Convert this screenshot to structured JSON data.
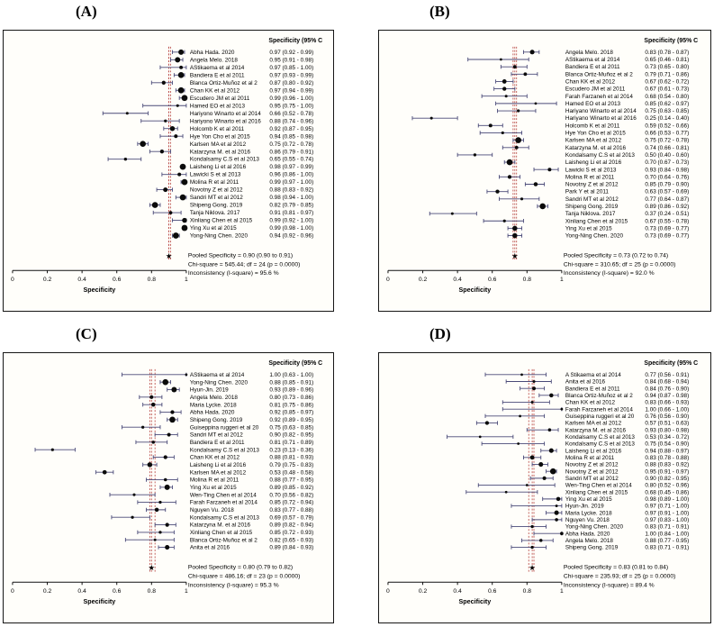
{
  "colors": {
    "ci_line": "#4a4a78",
    "point": "#0b0b0b",
    "pooled_line": "#b5413c",
    "axis": "#111111",
    "text": "#000000"
  },
  "chart_data": [
    {
      "type": "scatter",
      "subtype": "forest-plot",
      "panel": "(A)",
      "header": "Specificity (95% C",
      "xlabel": "Specificity",
      "xlim": [
        0,
        1
      ],
      "xticks": [
        0,
        0.2,
        0.4,
        0.6,
        0.8,
        1
      ],
      "xtick_labels": [
        "0",
        "0.2",
        "0.4",
        "0.6",
        "0.8",
        "1"
      ],
      "pooled": {
        "est": 0.9,
        "lo": 0.9,
        "hi": 0.91
      },
      "studies": [
        {
          "name": "Abha Hada. 2020",
          "est": 0.97,
          "lo": 0.92,
          "hi": 0.99
        },
        {
          "name": "Angela Melo. 2018",
          "est": 0.95,
          "lo": 0.91,
          "hi": 0.98
        },
        {
          "name": "AStikaema et al 2014",
          "est": 0.97,
          "lo": 0.85,
          "hi": 1.0
        },
        {
          "name": "Bandiera E et al 2011",
          "est": 0.97,
          "lo": 0.93,
          "hi": 0.99
        },
        {
          "name": "Blanca Ortiz-Muñoz et al 2",
          "est": 0.87,
          "lo": 0.8,
          "hi": 0.92
        },
        {
          "name": "Chan KK et al 2012",
          "est": 0.97,
          "lo": 0.94,
          "hi": 0.99
        },
        {
          "name": "Escudero JM et al 2011",
          "est": 0.99,
          "lo": 0.96,
          "hi": 1.0
        },
        {
          "name": "Hamed EO et al 2013",
          "est": 0.95,
          "lo": 0.75,
          "hi": 1.0
        },
        {
          "name": "Hariyono Winarto et al 2014",
          "est": 0.66,
          "lo": 0.52,
          "hi": 0.78
        },
        {
          "name": "Hariyono Winarto et al 2016",
          "est": 0.88,
          "lo": 0.74,
          "hi": 0.96
        },
        {
          "name": "Holcomb K et al 2011",
          "est": 0.92,
          "lo": 0.87,
          "hi": 0.95
        },
        {
          "name": "Hye Yon Cho et al 2015",
          "est": 0.94,
          "lo": 0.85,
          "hi": 0.98
        },
        {
          "name": "Karlsen MA et al 2012",
          "est": 0.75,
          "lo": 0.72,
          "hi": 0.78
        },
        {
          "name": "Katarzyna M.  et al 2016",
          "est": 0.86,
          "lo": 0.79,
          "hi": 0.91
        },
        {
          "name": "Kondalsamy C.S et al 2013",
          "est": 0.65,
          "lo": 0.55,
          "hi": 0.74
        },
        {
          "name": "Laisheng Li et al 2016",
          "est": 0.98,
          "lo": 0.97,
          "hi": 0.99
        },
        {
          "name": "Lawicki S et al 2013",
          "est": 0.96,
          "lo": 0.86,
          "hi": 1.0
        },
        {
          "name": "Molina R et al 2011",
          "est": 0.99,
          "lo": 0.97,
          "hi": 1.0
        },
        {
          "name": "Novotny Z et al 2012",
          "est": 0.88,
          "lo": 0.83,
          "hi": 0.92
        },
        {
          "name": "Sandri MT et al 2012",
          "est": 0.98,
          "lo": 0.94,
          "hi": 1.0
        },
        {
          "name": "Shipeng Gong. 2019",
          "est": 0.82,
          "lo": 0.79,
          "hi": 0.85
        },
        {
          "name": "Tanja Niklova. 2017",
          "est": 0.91,
          "lo": 0.81,
          "hi": 0.97
        },
        {
          "name": "Xinliang Chen et al 2015",
          "est": 0.99,
          "lo": 0.92,
          "hi": 1.0
        },
        {
          "name": "Ying Xu et al 2015",
          "est": 0.99,
          "lo": 0.98,
          "hi": 1.0
        },
        {
          "name": "Yong-Ning Chen. 2020",
          "est": 0.94,
          "lo": 0.92,
          "hi": 0.96
        }
      ],
      "summary": [
        "Pooled Specificity = 0.90 (0.90 to 0.91)",
        "Chi-square = 545.44; df = 24 (p = 0.0000)",
        "Inconsistency (I-square) = 95.6 %"
      ]
    },
    {
      "type": "scatter",
      "subtype": "forest-plot",
      "panel": "(B)",
      "header": "Specificity (95% C",
      "xlabel": "Specificity",
      "xlim": [
        0,
        1
      ],
      "xticks": [
        0,
        0.2,
        0.4,
        0.6,
        0.8,
        1
      ],
      "xtick_labels": [
        "0",
        "0.2",
        "0.4",
        "0.6",
        "0.8",
        "1"
      ],
      "pooled": {
        "est": 0.73,
        "lo": 0.72,
        "hi": 0.74
      },
      "studies": [
        {
          "name": "Angela Melo. 2018",
          "est": 0.83,
          "lo": 0.78,
          "hi": 0.87
        },
        {
          "name": "AStikaema et al 2014",
          "est": 0.65,
          "lo": 0.46,
          "hi": 0.81
        },
        {
          "name": "Bandiera E et al 2011",
          "est": 0.73,
          "lo": 0.65,
          "hi": 0.8
        },
        {
          "name": "Blanca Ortiz-Muñoz et al 2",
          "est": 0.79,
          "lo": 0.71,
          "hi": 0.86
        },
        {
          "name": "Chan KK et al 2012",
          "est": 0.67,
          "lo": 0.62,
          "hi": 0.72
        },
        {
          "name": "Escudero JM et al 2011",
          "est": 0.67,
          "lo": 0.61,
          "hi": 0.73
        },
        {
          "name": "Farah Farzaneh et al 2014",
          "est": 0.68,
          "lo": 0.54,
          "hi": 0.8
        },
        {
          "name": "Hamed EO et al 2013",
          "est": 0.85,
          "lo": 0.62,
          "hi": 0.97
        },
        {
          "name": "Hariyano Winarto et al 2014",
          "est": 0.75,
          "lo": 0.63,
          "hi": 0.85
        },
        {
          "name": "Hariyano Winarto et al 2016",
          "est": 0.25,
          "lo": 0.14,
          "hi": 0.4
        },
        {
          "name": "Holcomb K et al 2011",
          "est": 0.59,
          "lo": 0.52,
          "hi": 0.66
        },
        {
          "name": "Hye Yon Cho et al 2015",
          "est": 0.66,
          "lo": 0.53,
          "hi": 0.77
        },
        {
          "name": "Karlsen MA et al 2012",
          "est": 0.75,
          "lo": 0.72,
          "hi": 0.78
        },
        {
          "name": "Katarzyna M.  et al 2016",
          "est": 0.74,
          "lo": 0.66,
          "hi": 0.81
        },
        {
          "name": "Kondalsamy C.S et al 2013",
          "est": 0.5,
          "lo": 0.4,
          "hi": 0.6
        },
        {
          "name": "Laisheng Li et al 2016",
          "est": 0.7,
          "lo": 0.67,
          "hi": 0.73
        },
        {
          "name": "Lawicki S et al 2013",
          "est": 0.93,
          "lo": 0.84,
          "hi": 0.98
        },
        {
          "name": "Molina R et al 2011",
          "est": 0.7,
          "lo": 0.64,
          "hi": 0.76
        },
        {
          "name": "Novotny Z et al 2012",
          "est": 0.85,
          "lo": 0.79,
          "hi": 0.9
        },
        {
          "name": "Park Y et al 2011",
          "est": 0.63,
          "lo": 0.57,
          "hi": 0.69
        },
        {
          "name": "Sandri MT et al 2012",
          "est": 0.77,
          "lo": 0.64,
          "hi": 0.87
        },
        {
          "name": "Shipeng Gong. 2019",
          "est": 0.89,
          "lo": 0.86,
          "hi": 0.92
        },
        {
          "name": "Tanja Niklova. 2017",
          "est": 0.37,
          "lo": 0.24,
          "hi": 0.51
        },
        {
          "name": "Xinliang Chen et al 2015",
          "est": 0.67,
          "lo": 0.55,
          "hi": 0.78
        },
        {
          "name": "Ying Xu et al 2015",
          "est": 0.73,
          "lo": 0.69,
          "hi": 0.77
        },
        {
          "name": "Yong-Ning Chen. 2020",
          "est": 0.73,
          "lo": 0.69,
          "hi": 0.77
        }
      ],
      "summary": [
        "Pooled Specificity = 0.73 (0.72 to 0.74)",
        "Chi-square = 310.65; df = 25 (p = 0.0000)",
        "Inconsistency (I-square) = 92.0 %"
      ]
    },
    {
      "type": "scatter",
      "subtype": "forest-plot",
      "panel": "(C)",
      "header": "Specificity (95% C",
      "xlabel": "Specificity",
      "xlim": [
        0,
        1
      ],
      "xticks": [
        0,
        0.2,
        0.4,
        0.6,
        0.8,
        1
      ],
      "xtick_labels": [
        "0",
        "0.2",
        "0.4",
        "0.6",
        "0.8",
        "1"
      ],
      "pooled": {
        "est": 0.8,
        "lo": 0.79,
        "hi": 0.82
      },
      "studies": [
        {
          "name": "AStikaema et al 2014",
          "est": 1.0,
          "lo": 0.63,
          "hi": 1.0
        },
        {
          "name": "Yong-Ning Chen. 2020",
          "est": 0.88,
          "lo": 0.85,
          "hi": 0.91
        },
        {
          "name": "Hyun-Jin. 2019",
          "est": 0.93,
          "lo": 0.89,
          "hi": 0.96
        },
        {
          "name": "Angela Melo. 2018",
          "est": 0.8,
          "lo": 0.73,
          "hi": 0.86
        },
        {
          "name": "Maria Lycke. 2018",
          "est": 0.81,
          "lo": 0.75,
          "hi": 0.86
        },
        {
          "name": "Abha Hada. 2020",
          "est": 0.92,
          "lo": 0.85,
          "hi": 0.97
        },
        {
          "name": "Shipeng Gong. 2019",
          "est": 0.92,
          "lo": 0.89,
          "hi": 0.95
        },
        {
          "name": "Guiseppina ruggeri et al 20",
          "est": 0.75,
          "lo": 0.63,
          "hi": 0.85
        },
        {
          "name": "Sandri MT et al 2012",
          "est": 0.9,
          "lo": 0.82,
          "hi": 0.95
        },
        {
          "name": "Bandiera E et al 2011",
          "est": 0.81,
          "lo": 0.71,
          "hi": 0.89
        },
        {
          "name": "Kondalsamy C.S et al 2013",
          "est": 0.23,
          "lo": 0.13,
          "hi": 0.36
        },
        {
          "name": "Chan KK et al 2012",
          "est": 0.88,
          "lo": 0.81,
          "hi": 0.93
        },
        {
          "name": "Laisheng Li et al 2016",
          "est": 0.79,
          "lo": 0.75,
          "hi": 0.83
        },
        {
          "name": "Karlsen MA et al 2012",
          "est": 0.53,
          "lo": 0.48,
          "hi": 0.58
        },
        {
          "name": "Molina R et al 2011",
          "est": 0.88,
          "lo": 0.77,
          "hi": 0.95
        },
        {
          "name": "Ying Xu et al 2015",
          "est": 0.89,
          "lo": 0.85,
          "hi": 0.92
        },
        {
          "name": "Wen-Ting Chen et al 2014",
          "est": 0.7,
          "lo": 0.56,
          "hi": 0.82
        },
        {
          "name": "Farah Farzaneh et al 2014",
          "est": 0.85,
          "lo": 0.72,
          "hi": 0.94
        },
        {
          "name": "Nguyen Vu. 2018",
          "est": 0.83,
          "lo": 0.77,
          "hi": 0.88
        },
        {
          "name": "Kondalsamy C.S et al 2013",
          "est": 0.69,
          "lo": 0.57,
          "hi": 0.79
        },
        {
          "name": "Katarzyna M. et al 2016",
          "est": 0.89,
          "lo": 0.82,
          "hi": 0.94
        },
        {
          "name": "Xinliang Chen et al 2015",
          "est": 0.85,
          "lo": 0.72,
          "hi": 0.93
        },
        {
          "name": "Blanca Ortiz-Muñoz et al 2",
          "est": 0.82,
          "lo": 0.65,
          "hi": 0.93
        },
        {
          "name": "Anita et al 2016",
          "est": 0.89,
          "lo": 0.84,
          "hi": 0.93
        }
      ],
      "summary": [
        "Pooled Specificity = 0.80 (0.79 to 0.82)",
        "Chi-square = 486.16; df = 23 (p = 0.0000)",
        "Inconsistency (I-square) = 95.3 %"
      ]
    },
    {
      "type": "scatter",
      "subtype": "forest-plot",
      "panel": "(D)",
      "header": "Specificity (95% C",
      "xlabel": "Specificity",
      "xlim": [
        0,
        1
      ],
      "xticks": [
        0,
        0.2,
        0.4,
        0.6,
        0.8,
        1
      ],
      "xtick_labels": [
        "0",
        "0.2",
        "0.4",
        "0.6",
        "0.8",
        "1"
      ],
      "pooled": {
        "est": 0.83,
        "lo": 0.81,
        "hi": 0.84
      },
      "studies": [
        {
          "name": "A Stikaema et al 2014",
          "est": 0.77,
          "lo": 0.56,
          "hi": 0.91
        },
        {
          "name": "Anita et al 2016",
          "est": 0.84,
          "lo": 0.68,
          "hi": 0.94
        },
        {
          "name": "Bandiera E et al 2011",
          "est": 0.84,
          "lo": 0.76,
          "hi": 0.9
        },
        {
          "name": "Blanca Ortiz-Muñoz et al 2",
          "est": 0.94,
          "lo": 0.87,
          "hi": 0.98
        },
        {
          "name": "Chan KK et al 2012",
          "est": 0.83,
          "lo": 0.66,
          "hi": 0.93
        },
        {
          "name": "Farah Farzaneh et al 2014",
          "est": 1.0,
          "lo": 0.66,
          "hi": 1.0
        },
        {
          "name": "Guiseppina ruggeri et al 20",
          "est": 0.76,
          "lo": 0.56,
          "hi": 0.9
        },
        {
          "name": "Karlsen MA et al 2012",
          "est": 0.57,
          "lo": 0.51,
          "hi": 0.63
        },
        {
          "name": "Katarzyna M.  et al 2016",
          "est": 0.93,
          "lo": 0.8,
          "hi": 0.98
        },
        {
          "name": "Kondalsamy C.S et al 2013",
          "est": 0.53,
          "lo": 0.34,
          "hi": 0.72
        },
        {
          "name": "Kondalsamy C.S et al 2013",
          "est": 0.75,
          "lo": 0.54,
          "hi": 0.9
        },
        {
          "name": "Laisheng Li et al 2016",
          "est": 0.94,
          "lo": 0.88,
          "hi": 0.97
        },
        {
          "name": "Molina R et al 2011",
          "est": 0.83,
          "lo": 0.78,
          "hi": 0.88
        },
        {
          "name": "Novotny Z et al 2012",
          "est": 0.88,
          "lo": 0.83,
          "hi": 0.92
        },
        {
          "name": "Novotny Z et al 2012",
          "est": 0.95,
          "lo": 0.91,
          "hi": 0.97
        },
        {
          "name": "Sandri MT et al 2012",
          "est": 0.9,
          "lo": 0.82,
          "hi": 0.95
        },
        {
          "name": "Wen-Ting Chen et al 2014",
          "est": 0.8,
          "lo": 0.52,
          "hi": 0.96
        },
        {
          "name": "Xinliang Chen et al 2015",
          "est": 0.68,
          "lo": 0.45,
          "hi": 0.86
        },
        {
          "name": "Ying Xu et al 2015",
          "est": 0.98,
          "lo": 0.89,
          "hi": 1.0
        },
        {
          "name": "Hyun-Jin. 2019",
          "est": 0.97,
          "lo": 0.71,
          "hi": 1.0
        },
        {
          "name": "Maria Lycke. 2018",
          "est": 0.97,
          "lo": 0.91,
          "hi": 1.0
        },
        {
          "name": "Nguyen Vu. 2018",
          "est": 0.97,
          "lo": 0.83,
          "hi": 1.0
        },
        {
          "name": "Yong-Ning Chen. 2020",
          "est": 0.83,
          "lo": 0.71,
          "hi": 0.91
        },
        {
          "name": "Abha Hada. 2020",
          "est": 1.0,
          "lo": 0.84,
          "hi": 1.0
        },
        {
          "name": "Angela Melo. 2018",
          "est": 0.88,
          "lo": 0.77,
          "hi": 0.95
        },
        {
          "name": "Shipeng Gong. 2019",
          "est": 0.83,
          "lo": 0.71,
          "hi": 0.91
        }
      ],
      "summary": [
        "Pooled Specificity = 0.83 (0.81 to 0.84)",
        "Chi-square = 235.93; df = 25 (p = 0.0000)",
        "Inconsistency (I-square) = 89.4 %"
      ]
    }
  ]
}
